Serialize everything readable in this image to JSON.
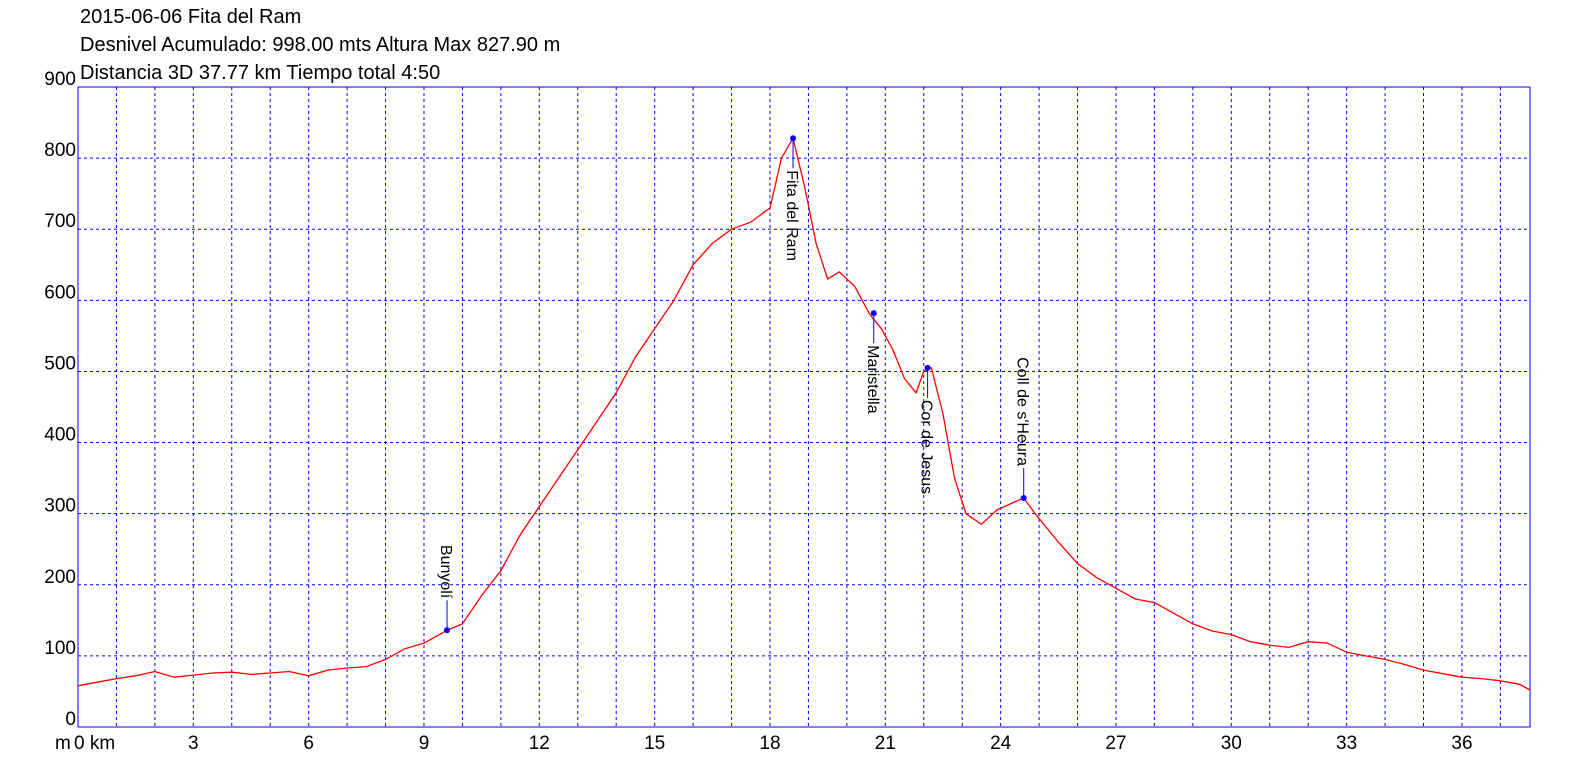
{
  "title_lines": [
    "2015-06-06 Fita del Ram",
    "Desnivel Acumulado: 998.00 mts  Altura Max 827.90 m",
    "Distancia 3D 37.77 km  Tiempo total 4:50"
  ],
  "colors": {
    "profile": "#ff0000",
    "grid": "#0000ff",
    "frame": "#0000ff",
    "waypoint": "#0000ff"
  },
  "chart_data": {
    "type": "line",
    "xunit_label": "m",
    "xlim": [
      0,
      37.77
    ],
    "ylim": [
      0,
      900
    ],
    "grid": true,
    "x_ticks": [
      {
        "value": 0,
        "label": "0 km"
      },
      {
        "value": 3,
        "label": "3"
      },
      {
        "value": 6,
        "label": "6"
      },
      {
        "value": 9,
        "label": "9"
      },
      {
        "value": 12,
        "label": "12"
      },
      {
        "value": 15,
        "label": "15"
      },
      {
        "value": 18,
        "label": "18"
      },
      {
        "value": 21,
        "label": "21"
      },
      {
        "value": 24,
        "label": "24"
      },
      {
        "value": 27,
        "label": "27"
      },
      {
        "value": 30,
        "label": "30"
      },
      {
        "value": 33,
        "label": "33"
      },
      {
        "value": 36,
        "label": "36"
      }
    ],
    "y_ticks": [
      {
        "value": 0,
        "label": "0"
      },
      {
        "value": 100,
        "label": "100"
      },
      {
        "value": 200,
        "label": "200"
      },
      {
        "value": 300,
        "label": "300"
      },
      {
        "value": 400,
        "label": "400"
      },
      {
        "value": 500,
        "label": "500"
      },
      {
        "value": 600,
        "label": "600"
      },
      {
        "value": 700,
        "label": "700"
      },
      {
        "value": 800,
        "label": "800"
      },
      {
        "value": 900,
        "label": "900"
      }
    ],
    "x_gridlines": [
      1,
      2,
      3,
      4,
      5,
      6,
      7,
      8,
      9,
      10,
      11,
      12,
      13,
      14,
      15,
      16,
      17,
      18,
      19,
      20,
      21,
      22,
      23,
      24,
      25,
      26,
      27,
      28,
      29,
      30,
      31,
      32,
      33,
      34,
      35,
      36,
      37
    ],
    "y_gridlines": [
      100,
      200,
      300,
      400,
      500,
      600,
      700,
      800
    ],
    "profile": {
      "x": [
        0,
        0.5,
        1,
        1.5,
        2,
        2.5,
        3,
        3.5,
        4,
        4.5,
        5,
        5.5,
        6,
        6.5,
        7,
        7.5,
        8,
        8.5,
        9,
        9.6,
        10,
        10.5,
        11,
        11.5,
        12,
        12.5,
        13,
        13.5,
        14,
        14.5,
        15,
        15.5,
        16,
        16.5,
        17,
        17.5,
        18,
        18.3,
        18.6,
        18.9,
        19.2,
        19.5,
        19.8,
        20.2,
        20.6,
        20.9,
        21.2,
        21.5,
        21.8,
        22.0,
        22.2,
        22.5,
        22.8,
        23.1,
        23.5,
        23.9,
        24.3,
        24.6,
        24.9,
        25.5,
        26,
        26.5,
        27,
        27.5,
        28,
        28.5,
        29,
        29.5,
        30,
        30.5,
        31,
        31.5,
        32,
        32.5,
        33,
        33.5,
        34,
        34.5,
        35,
        35.5,
        36,
        36.5,
        37,
        37.5,
        37.77
      ],
      "y": [
        58,
        63,
        68,
        72,
        78,
        70,
        73,
        76,
        77,
        74,
        76,
        78,
        72,
        80,
        83,
        85,
        95,
        110,
        118,
        136,
        145,
        185,
        220,
        270,
        310,
        350,
        390,
        430,
        470,
        520,
        560,
        600,
        650,
        680,
        700,
        710,
        730,
        800,
        828,
        760,
        680,
        630,
        640,
        620,
        580,
        560,
        530,
        490,
        470,
        500,
        505,
        440,
        350,
        300,
        285,
        305,
        315,
        322,
        300,
        260,
        230,
        210,
        195,
        180,
        175,
        160,
        145,
        135,
        130,
        120,
        115,
        112,
        120,
        118,
        105,
        100,
        95,
        88,
        80,
        75,
        70,
        68,
        65,
        60,
        52
      ]
    },
    "waypoints": [
      {
        "x": 9.6,
        "y": 136,
        "label": "Bunyolí"
      },
      {
        "x": 18.6,
        "y": 828,
        "label": "Fita del Ram"
      },
      {
        "x": 20.7,
        "y": 582,
        "label": "Maristella"
      },
      {
        "x": 22.1,
        "y": 505,
        "label": "Cor de Jesus"
      },
      {
        "x": 24.6,
        "y": 322,
        "label": "Coll de s'Heura"
      }
    ]
  }
}
